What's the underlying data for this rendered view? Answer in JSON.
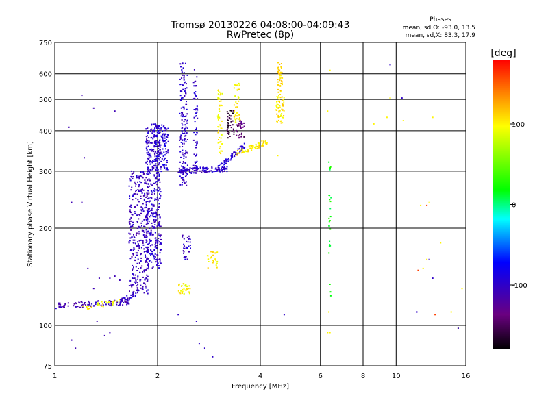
{
  "chart_data": {
    "type": "scatter",
    "title": "Tromsø 20130226 04:08:00-04:09:43",
    "subtitle": "RwPretec (8p)",
    "stats": {
      "heading": "Phases",
      "line1": "mean, sd,O: -93.0, 13.5",
      "line2": "mean, sd,X: 83.3, 17.9"
    },
    "xlabel": "Frequency [MHz]",
    "ylabel": "Stationary phase Virtual Height [km]",
    "x_scale": "log",
    "y_scale": "log",
    "xlim": [
      1,
      16
    ],
    "ylim": [
      75,
      750
    ],
    "x_ticks": [
      "1",
      "2",
      "4",
      "6",
      "8",
      "10",
      "16"
    ],
    "x_tick_values": [
      1,
      2,
      4,
      6,
      8,
      10,
      16
    ],
    "y_ticks": [
      "75",
      "100",
      "200",
      "300",
      "400",
      "500",
      "600",
      "750"
    ],
    "y_tick_values": [
      75,
      100,
      200,
      300,
      400,
      500,
      600,
      750
    ],
    "grid": true,
    "colorbar": {
      "label": "[deg]",
      "range": [
        -180,
        180
      ],
      "ticks": [
        "100",
        "0",
        "-100"
      ],
      "tick_values": [
        100,
        0,
        -100
      ]
    },
    "series": [
      {
        "type": "seg",
        "x": [
          1.0,
          1.65
        ],
        "y": [
          115,
          118
        ],
        "phase": -110,
        "n": 90
      },
      {
        "type": "seg",
        "x": [
          1.2,
          1.55
        ],
        "y": [
          113,
          119
        ],
        "phase": 100,
        "n": 30
      },
      {
        "type": "seg",
        "x": [
          1.55,
          1.78
        ],
        "y": [
          118,
          128
        ],
        "phase": -100,
        "n": 40
      },
      {
        "type": "box",
        "x": [
          1.65,
          1.88
        ],
        "y": [
          125,
          300
        ],
        "phase": -105,
        "n": 320
      },
      {
        "type": "box",
        "x": [
          1.85,
          2.05
        ],
        "y": [
          150,
          420
        ],
        "phase": -100,
        "n": 420
      },
      {
        "type": "box",
        "x": [
          1.95,
          2.15
        ],
        "y": [
          300,
          420
        ],
        "phase": -95,
        "n": 120
      },
      {
        "type": "box",
        "x": [
          2.32,
          2.45
        ],
        "y": [
          270,
          650
        ],
        "phase": -100,
        "n": 160
      },
      {
        "type": "box",
        "x": [
          2.55,
          2.62
        ],
        "y": [
          300,
          620
        ],
        "phase": -100,
        "n": 60
      },
      {
        "type": "seg",
        "x": [
          2.3,
          3.2
        ],
        "y": [
          300,
          305
        ],
        "phase": -100,
        "n": 120
      },
      {
        "type": "seg",
        "x": [
          3.0,
          3.6
        ],
        "y": [
          305,
          360
        ],
        "phase": -95,
        "n": 60
      },
      {
        "type": "box",
        "x": [
          3.0,
          3.1
        ],
        "y": [
          340,
          540
        ],
        "phase": 100,
        "n": 50
      },
      {
        "type": "box",
        "x": [
          3.2,
          3.35
        ],
        "y": [
          380,
          470
        ],
        "phase": -160,
        "n": 40
      },
      {
        "type": "box",
        "x": [
          3.4,
          3.6
        ],
        "y": [
          380,
          430
        ],
        "phase": -140,
        "n": 30
      },
      {
        "type": "box",
        "x": [
          3.35,
          3.5
        ],
        "y": [
          420,
          560
        ],
        "phase": 100,
        "n": 40
      },
      {
        "type": "seg",
        "x": [
          3.4,
          4.2
        ],
        "y": [
          340,
          370
        ],
        "phase": 105,
        "n": 60
      },
      {
        "type": "box",
        "x": [
          4.45,
          4.7
        ],
        "y": [
          420,
          520
        ],
        "phase": 105,
        "n": 60
      },
      {
        "type": "box",
        "x": [
          4.5,
          4.65
        ],
        "y": [
          520,
          650
        ],
        "phase": 110,
        "n": 40
      },
      {
        "type": "box",
        "x": [
          2.3,
          2.5
        ],
        "y": [
          125,
          135
        ],
        "phase": 100,
        "n": 35
      },
      {
        "type": "box",
        "x": [
          2.35,
          2.5
        ],
        "y": [
          160,
          190
        ],
        "phase": -100,
        "n": 30
      },
      {
        "type": "box",
        "x": [
          2.8,
          3.0
        ],
        "y": [
          150,
          170
        ],
        "phase": 100,
        "n": 25
      },
      {
        "type": "box",
        "x": [
          6.35,
          6.45
        ],
        "y": [
          120,
          320
        ],
        "phase": 20,
        "n": 25
      },
      {
        "type": "pts",
        "x": [
          1.12,
          1.15,
          1.2,
          1.3,
          1.5,
          1.45,
          1.4,
          1.33,
          1.3,
          1.25,
          1.2,
          1.22,
          1.1,
          1.12,
          1.35,
          1.45,
          1.5,
          1.55
        ],
        "y": [
          90,
          85,
          515,
          470,
          460,
          95,
          93,
          103,
          130,
          150,
          240,
          330,
          410,
          240,
          140,
          140,
          142,
          138
        ],
        "phase": -110
      },
      {
        "type": "pts",
        "x": [
          2.6,
          2.75,
          2.9,
          2.65,
          2.3
        ],
        "y": [
          103,
          85,
          80,
          88,
          108
        ],
        "phase": -100
      },
      {
        "type": "pts",
        "x": [
          6.3,
          6.4,
          4.5,
          6.3,
          9.6,
          10.5,
          11.8,
          12.5,
          12.8,
          13.5,
          14.5,
          15.2,
          15.6,
          9.4,
          8.6,
          6.4,
          12.0,
          12.3,
          6.35
        ],
        "y": [
          95,
          615,
          335,
          460,
          505,
          430,
          235,
          240,
          440,
          180,
          110,
          98,
          130,
          440,
          420,
          95,
          150,
          160,
          110
        ],
        "phase": 100
      },
      {
        "type": "pts",
        "x": [
          9.6,
          12.8,
          12.5,
          15.2,
          10.4,
          11.5,
          4.7
        ],
        "y": [
          640,
          140,
          160,
          98,
          505,
          110,
          108
        ],
        "phase": -100
      },
      {
        "type": "pts",
        "x": [
          12.3,
          13.0,
          11.6
        ],
        "y": [
          235,
          108,
          148
        ],
        "phase": 160
      }
    ]
  }
}
